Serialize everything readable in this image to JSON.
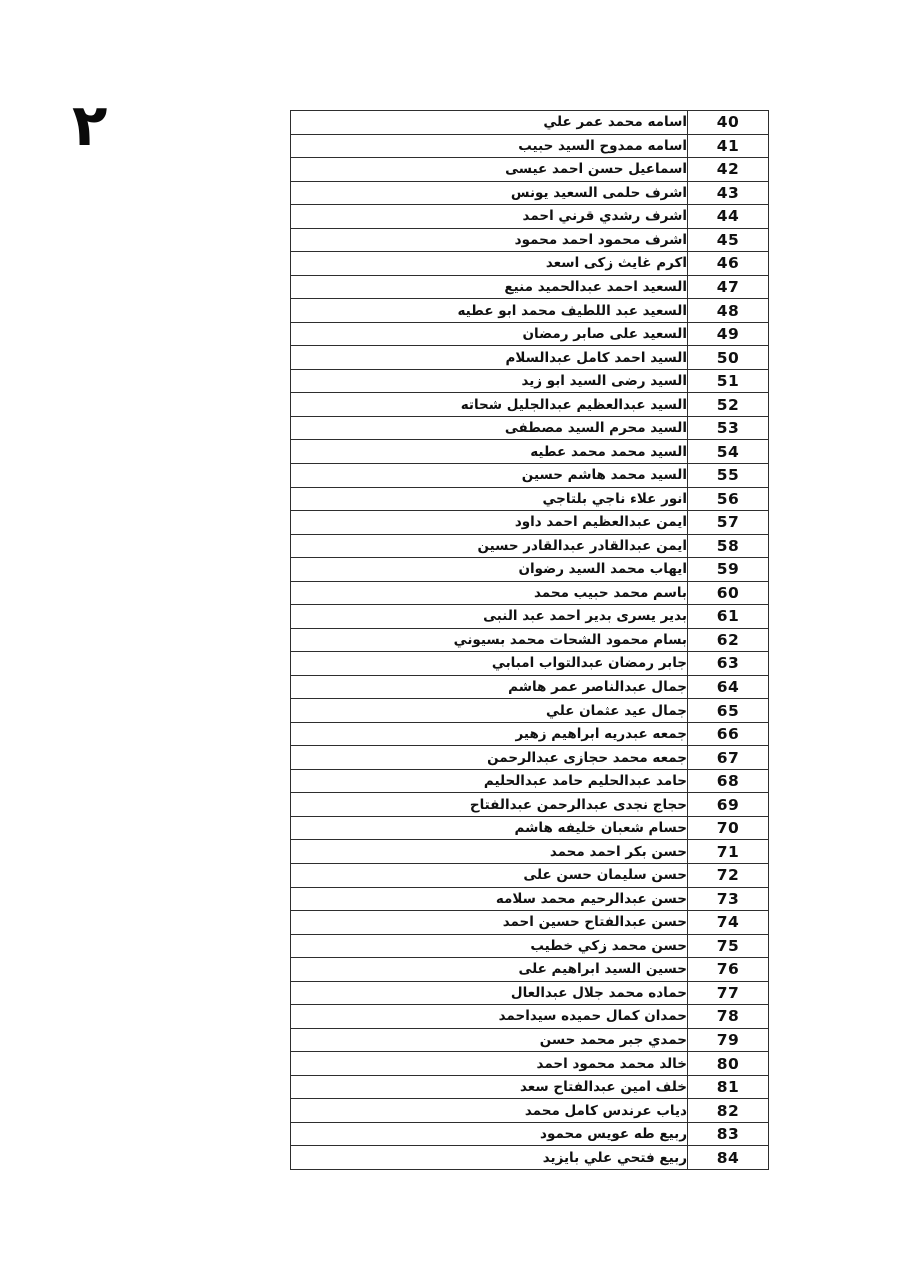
{
  "page": {
    "page_number_arabic": "٢"
  },
  "table": {
    "rows": [
      {
        "num": "40",
        "name": "اسامه محمد عمر علي"
      },
      {
        "num": "41",
        "name": "اسامه ممدوح السيد حبيب"
      },
      {
        "num": "42",
        "name": "اسماعيل حسن احمد عيسى"
      },
      {
        "num": "43",
        "name": "اشرف حلمى السعيد يونس"
      },
      {
        "num": "44",
        "name": "اشرف رشدي قرني احمد"
      },
      {
        "num": "45",
        "name": "اشرف محمود احمد محمود"
      },
      {
        "num": "46",
        "name": "اكرم غايث زكى اسعد"
      },
      {
        "num": "47",
        "name": "السعيد احمد عبدالحميد منيع"
      },
      {
        "num": "48",
        "name": "السعيد عبد اللطيف محمد ابو عطيه"
      },
      {
        "num": "49",
        "name": "السعيد على صابر رمضان"
      },
      {
        "num": "50",
        "name": "السيد احمد كامل عبدالسلام"
      },
      {
        "num": "51",
        "name": "السيد رضى السيد ابو زيد"
      },
      {
        "num": "52",
        "name": "السيد عبدالعظيم عبدالجليل شحاته"
      },
      {
        "num": "53",
        "name": "السيد محرم السيد مصطفى"
      },
      {
        "num": "54",
        "name": "السيد محمد محمد عطيه"
      },
      {
        "num": "55",
        "name": "السيد محمد هاشم حسين"
      },
      {
        "num": "56",
        "name": "انور علاء ناجي بلتاجي"
      },
      {
        "num": "57",
        "name": "ايمن عبدالعظيم احمد داود"
      },
      {
        "num": "58",
        "name": "ايمن عبدالقادر عبدالقادر حسين"
      },
      {
        "num": "59",
        "name": "ايهاب محمد السيد رضوان"
      },
      {
        "num": "60",
        "name": "باسم محمد حبيب محمد"
      },
      {
        "num": "61",
        "name": "بدير يسرى بدير احمد عبد النبى"
      },
      {
        "num": "62",
        "name": "بسام محمود الشحات محمد بسيوني"
      },
      {
        "num": "63",
        "name": "جابر رمضان عبدالتواب امبابي"
      },
      {
        "num": "64",
        "name": "جمال عبدالناصر عمر هاشم"
      },
      {
        "num": "65",
        "name": "جمال عيد عثمان علي"
      },
      {
        "num": "66",
        "name": "جمعه عبدريه ابراهيم زهير"
      },
      {
        "num": "67",
        "name": "جمعه محمد حجازى عبدالرحمن"
      },
      {
        "num": "68",
        "name": "حامد عبدالحليم حامد عبدالحليم"
      },
      {
        "num": "69",
        "name": "حجاج نجدى عبدالرحمن عبدالفتاح"
      },
      {
        "num": "70",
        "name": "حسام شعبان خليفه هاشم"
      },
      {
        "num": "71",
        "name": "حسن بكر احمد محمد"
      },
      {
        "num": "72",
        "name": "حسن سليمان حسن على"
      },
      {
        "num": "73",
        "name": "حسن عبدالرحيم محمد سلامه"
      },
      {
        "num": "74",
        "name": "حسن عبدالفتاح حسين احمد"
      },
      {
        "num": "75",
        "name": "حسن محمد زكي خطيب"
      },
      {
        "num": "76",
        "name": "حسين السيد ابراهيم على"
      },
      {
        "num": "77",
        "name": "حماده محمد جلال عبدالعال"
      },
      {
        "num": "78",
        "name": "حمدان كمال حميده سيداحمد"
      },
      {
        "num": "79",
        "name": "حمدي جبر محمد حسن"
      },
      {
        "num": "80",
        "name": "خالد محمد محمود احمد"
      },
      {
        "num": "81",
        "name": "خلف امين عبدالفتاح سعد"
      },
      {
        "num": "82",
        "name": "دياب عرندس كامل محمد"
      },
      {
        "num": "83",
        "name": "ربيع طه عويس محمود"
      },
      {
        "num": "84",
        "name": "ربيع فتحي علي بايزيد"
      }
    ]
  }
}
